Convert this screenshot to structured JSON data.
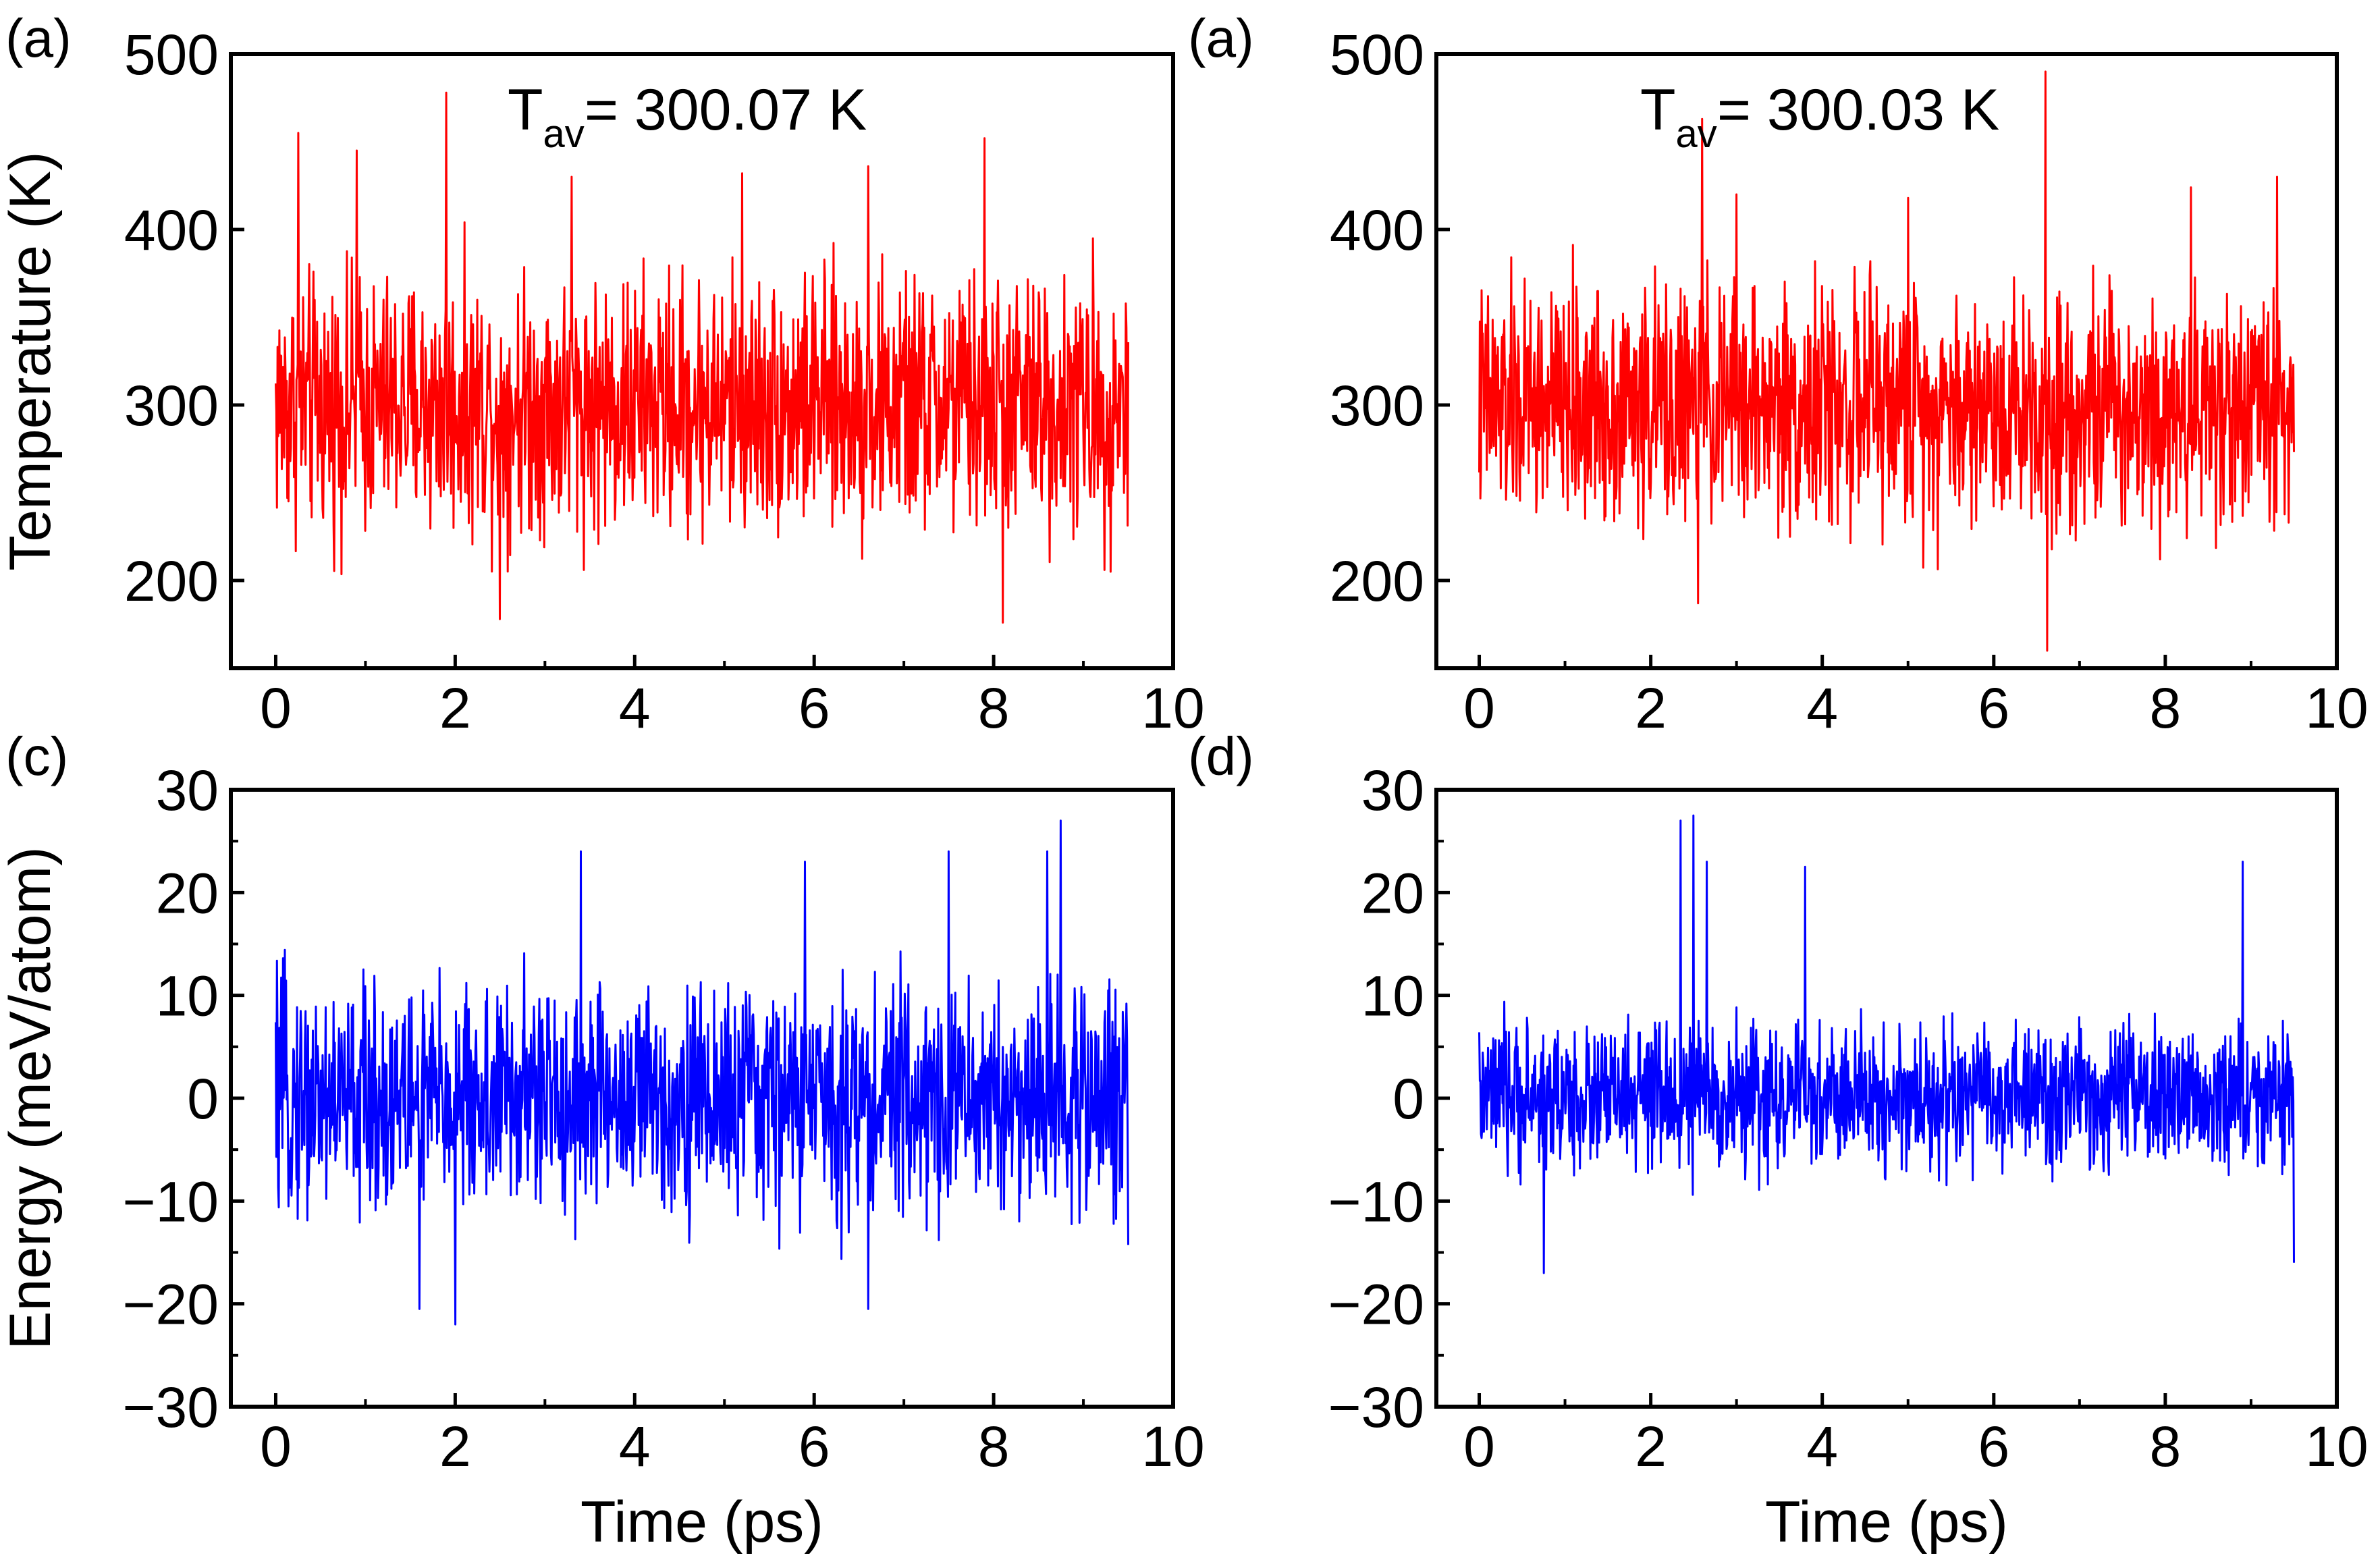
{
  "figure": {
    "colors": {
      "temperature": "#ff0000",
      "energy": "#0000ff",
      "axis": "#000000"
    }
  },
  "chart_data": [
    {
      "id": "a1",
      "type": "line",
      "panel_label": "(a)",
      "title": "",
      "annotation": {
        "main": "T",
        "sub": "av",
        "rest": "= 300.07 K"
      },
      "xlabel": "",
      "ylabel": "Temperature (K)",
      "xlim": [
        -0.5,
        10.0
      ],
      "ylim": [
        150,
        500
      ],
      "xticks": [
        "0",
        "2",
        "4",
        "6",
        "8",
        "10"
      ],
      "yticks": [
        "200",
        "300",
        "400",
        "500"
      ],
      "series": [
        {
          "name": "Temperature",
          "color": "#ff0000",
          "x_range": [
            0,
            9.5
          ],
          "mean": 300.07,
          "spread": 62,
          "spikes": [
            [
              0.25,
              455
            ],
            [
              0.9,
              445
            ],
            [
              1.9,
              478
            ],
            [
              2.5,
              178
            ],
            [
              3.3,
              430
            ],
            [
              5.2,
              432
            ],
            [
              6.6,
              436
            ],
            [
              7.9,
              452
            ],
            [
              8.1,
              176
            ],
            [
              9.3,
              205
            ]
          ]
        }
      ]
    },
    {
      "id": "a2",
      "type": "line",
      "panel_label": "(a)",
      "title": "",
      "annotation": {
        "main": "T",
        "sub": "av",
        "rest": "= 300.03 K"
      },
      "xlabel": "",
      "ylabel": "",
      "xlim": [
        -0.5,
        10.0
      ],
      "ylim": [
        150,
        500
      ],
      "xticks": [
        "0",
        "2",
        "4",
        "6",
        "8",
        "10"
      ],
      "yticks": [
        "200",
        "300",
        "400",
        "500"
      ],
      "series": [
        {
          "name": "Temperature",
          "color": "#ff0000",
          "x_range": [
            0,
            9.5
          ],
          "mean": 300.03,
          "spread": 58,
          "spikes": [
            [
              2.6,
              463
            ],
            [
              2.55,
              187
            ],
            [
              6.6,
              490
            ],
            [
              6.62,
              160
            ],
            [
              3.0,
              420
            ],
            [
              5.0,
              418
            ],
            [
              8.3,
              424
            ],
            [
              9.3,
              430
            ]
          ]
        }
      ]
    },
    {
      "id": "c",
      "type": "line",
      "panel_label": "(c)",
      "title": "",
      "annotation": null,
      "xlabel": "Time (ps)",
      "ylabel": "Energy (meV/atom)",
      "xlim": [
        -0.5,
        10.0
      ],
      "ylim": [
        -30,
        30
      ],
      "xticks": [
        "0",
        "2",
        "4",
        "6",
        "8",
        "10"
      ],
      "yticks": [
        "30",
        "20",
        "10",
        "0",
        "−10",
        "−20",
        "−30"
      ],
      "series": [
        {
          "name": "Energy",
          "color": "#0000ff",
          "x_range": [
            0,
            9.5
          ],
          "mean": 0,
          "spread": 9.5,
          "spikes": [
            [
              3.4,
              24
            ],
            [
              5.9,
              23
            ],
            [
              7.5,
              24
            ],
            [
              8.6,
              24
            ],
            [
              8.75,
              27
            ],
            [
              2.0,
              -22
            ],
            [
              1.6,
              -20.5
            ],
            [
              6.6,
              -20.5
            ]
          ]
        }
      ]
    },
    {
      "id": "d",
      "type": "line",
      "panel_label": "(d)",
      "title": "",
      "annotation": null,
      "xlabel": "Time (ps)",
      "ylabel": "",
      "xlim": [
        -0.5,
        10.0
      ],
      "ylim": [
        -30,
        30
      ],
      "xticks": [
        "0",
        "2",
        "4",
        "6",
        "8",
        "10"
      ],
      "yticks": [
        "30",
        "20",
        "10",
        "0",
        "−10",
        "−20",
        "−30"
      ],
      "series": [
        {
          "name": "Energy",
          "color": "#0000ff",
          "x_range": [
            0,
            9.5
          ],
          "mean": 0,
          "spread": 6,
          "spikes": [
            [
              2.35,
              27
            ],
            [
              2.5,
              27.5
            ],
            [
              2.65,
              23
            ],
            [
              3.8,
              22.5
            ],
            [
              8.9,
              23
            ],
            [
              0.75,
              -17
            ],
            [
              9.5,
              -16
            ]
          ]
        }
      ]
    }
  ]
}
